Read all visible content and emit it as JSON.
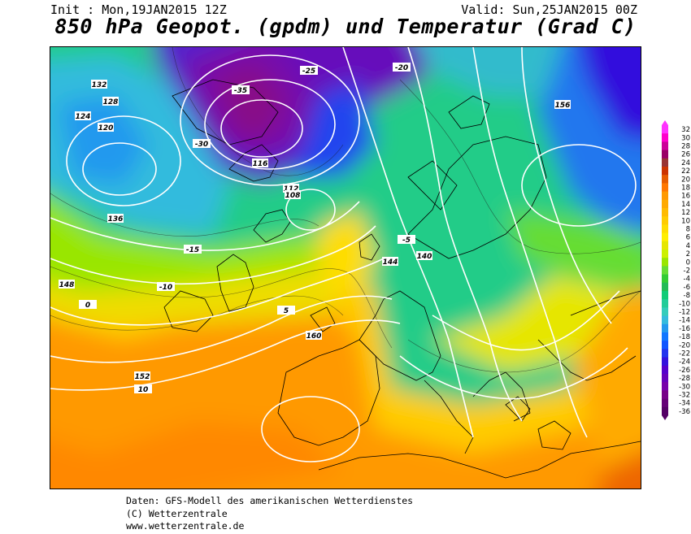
{
  "header": {
    "init": "Init : Mon,19JAN2015 12Z",
    "valid": "Valid: Sun,25JAN2015 00Z",
    "title": "850 hPa Geopot. (gpdm) und Temperatur (Grad C)"
  },
  "legend": {
    "ticks": [
      "32",
      "30",
      "28",
      "26",
      "24",
      "22",
      "20",
      "18",
      "16",
      "14",
      "12",
      "10",
      "8",
      "6",
      "4",
      "2",
      "0",
      "-2",
      "-4",
      "-6",
      "-8",
      "-10",
      "-12",
      "-14",
      "-16",
      "-18",
      "-20",
      "-22",
      "-24",
      "-26",
      "-28",
      "-30",
      "-32",
      "-34",
      "-36"
    ],
    "colors": [
      "#ff33ff",
      "#ff00cc",
      "#cc0099",
      "#990066",
      "#993333",
      "#cc3300",
      "#e65c00",
      "#ff7700",
      "#ff9900",
      "#ffaa00",
      "#ffbb00",
      "#ffcc00",
      "#ffdd00",
      "#ffee00",
      "#e6e600",
      "#ccf000",
      "#99e600",
      "#66dd33",
      "#33cc33",
      "#22bb55",
      "#11cc77",
      "#22cc99",
      "#33ccbb",
      "#33bbdd",
      "#2299ee",
      "#1177ff",
      "#1155ff",
      "#2233ee",
      "#3311dd",
      "#5500cc",
      "#6600bb",
      "#7700aa",
      "#770088",
      "#660077",
      "#550066"
    ]
  },
  "geopotential_labels": [
    "132",
    "128",
    "124",
    "120",
    "116",
    "112",
    "108",
    "136",
    "140",
    "144",
    "148",
    "152",
    "156",
    "160"
  ],
  "temperature_labels": [
    "-35",
    "-30",
    "-25",
    "-20",
    "-15",
    "-10",
    "-5",
    "0",
    "5",
    "10"
  ],
  "credits": {
    "line1": "Daten: GFS-Modell des amerikanischen Wetterdienstes",
    "line2": "(C) Wetterzentrale",
    "line3": "www.wetterzentrale.de"
  }
}
